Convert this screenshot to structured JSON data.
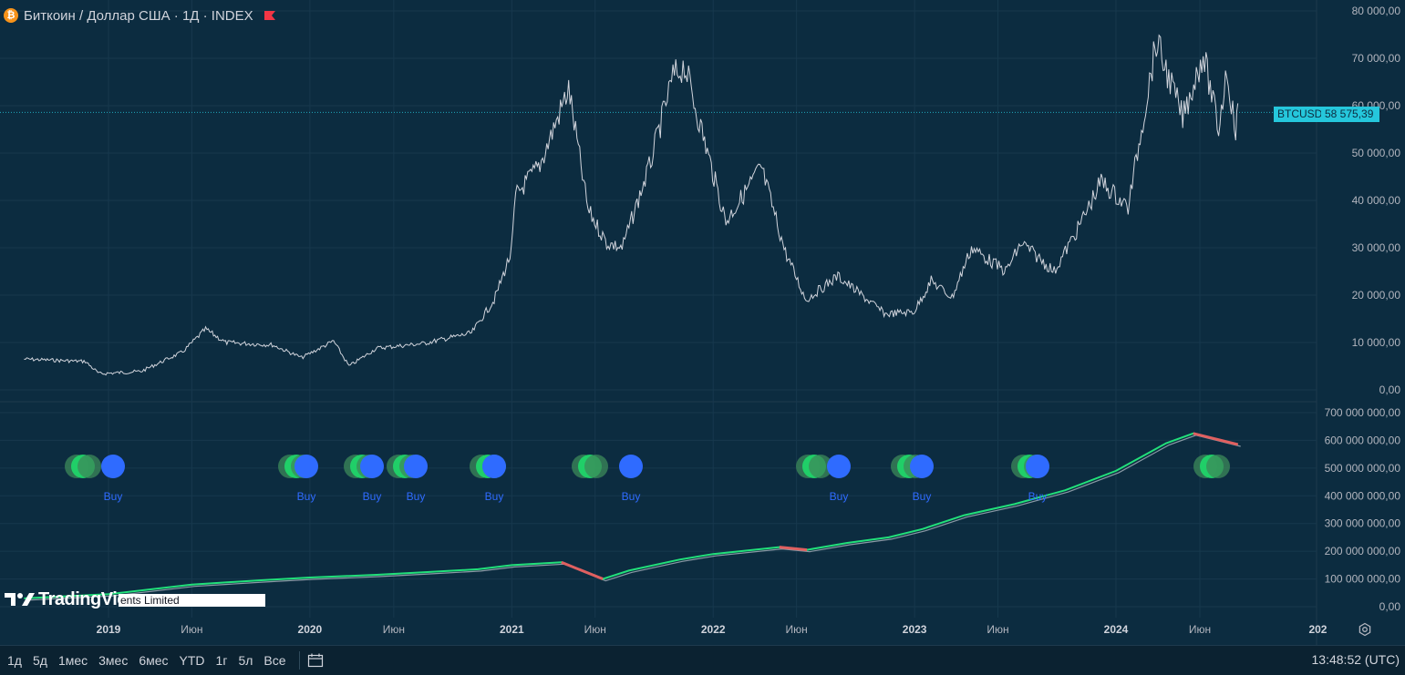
{
  "header": {
    "symbol_title": "Биткоин / Доллар США · 1Д · INDEX",
    "logo_glyph": "₿"
  },
  "colors": {
    "background": "#0c2c40",
    "price_line": "#d1d4dc",
    "grid": "#17384d",
    "indicator_green": "#22e07a",
    "indicator_red": "#e06060",
    "signal_blue": "#2f6bff",
    "accent_cyan": "#25c7dc"
  },
  "price_tag": {
    "symbol": "BTCUSD",
    "value": "58 575,39"
  },
  "time_axis_labels": [
    "2019",
    "Июн",
    "2020",
    "Июн",
    "2021",
    "Июн",
    "2022",
    "Июн",
    "2023",
    "Июн",
    "2024",
    "Июн",
    "202"
  ],
  "price_axis_labels": [
    "80 000,00",
    "70 000,00",
    "60 000,00",
    "50 000,00",
    "40 000,00",
    "30 000,00",
    "20 000,00",
    "10 000,00",
    "0,00"
  ],
  "indicator_axis_labels": [
    "700 000 000,00",
    "600 000 000,00",
    "500 000 000,00",
    "400 000 000,00",
    "300 000 000,00",
    "200 000 000,00",
    "100 000 000,00",
    "0,00"
  ],
  "signals": {
    "label": "Buy"
  },
  "bottom_bar": {
    "ranges": [
      "1д",
      "5д",
      "1мес",
      "3мес",
      "6мес",
      "YTD",
      "1г",
      "5л",
      "Все"
    ],
    "clock": "13:48:52 (UTC)"
  },
  "watermark": {
    "logo_text": "TradingView",
    "note_text": "ents Limited"
  },
  "chart_data": [
    {
      "type": "line",
      "name": "BTCUSD",
      "x": [
        "2018-08-01",
        "2018-11-20",
        "2018-12-15",
        "2019-03-01",
        "2019-05-15",
        "2019-06-26",
        "2019-08-01",
        "2019-10-25",
        "2019-12-17",
        "2020-02-13",
        "2020-03-12",
        "2020-05-01",
        "2020-07-25",
        "2020-10-20",
        "2020-11-30",
        "2020-12-31",
        "2021-01-08",
        "2021-02-21",
        "2021-04-14",
        "2021-05-19",
        "2021-06-22",
        "2021-07-20",
        "2021-09-07",
        "2021-10-20",
        "2021-11-10",
        "2021-12-31",
        "2022-01-24",
        "2022-03-29",
        "2022-05-12",
        "2022-06-18",
        "2022-08-15",
        "2022-11-09",
        "2022-12-31",
        "2023-01-31",
        "2023-03-10",
        "2023-04-14",
        "2023-06-15",
        "2023-07-14",
        "2023-09-11",
        "2023-10-24",
        "2023-12-05",
        "2024-01-23",
        "2024-03-14",
        "2024-05-01",
        "2024-06-07",
        "2024-07-05",
        "2024-07-20",
        "2024-08-05",
        "2024-08-09"
      ],
      "y": [
        6500,
        6000,
        3400,
        3900,
        8000,
        12800,
        10000,
        9500,
        6800,
        10300,
        5000,
        8800,
        9800,
        12000,
        19000,
        29000,
        41000,
        47500,
        63500,
        38000,
        31000,
        30000,
        47000,
        66000,
        68500,
        46000,
        35500,
        47000,
        29000,
        19000,
        24000,
        16000,
        16500,
        23000,
        19500,
        30000,
        25000,
        31000,
        25000,
        34000,
        44000,
        38500,
        73500,
        57500,
        71000,
        55000,
        68000,
        54000,
        60500
      ],
      "ylim": [
        0,
        80000
      ]
    },
    {
      "type": "line",
      "name": "indicator",
      "x": [
        "2018-08-01",
        "2019-01-01",
        "2019-06-01",
        "2019-10-01",
        "2020-01-01",
        "2020-05-01",
        "2020-08-01",
        "2020-11-01",
        "2021-01-01",
        "2021-04-01",
        "2021-06-15",
        "2021-08-01",
        "2021-11-01",
        "2022-01-01",
        "2022-05-01",
        "2022-06-20",
        "2022-09-01",
        "2022-11-15",
        "2023-01-15",
        "2023-04-01",
        "2023-07-01",
        "2023-10-01",
        "2024-01-01",
        "2024-04-01",
        "2024-05-20",
        "2024-08-09"
      ],
      "y": [
        30000000,
        45000000,
        80000000,
        95000000,
        105000000,
        115000000,
        125000000,
        135000000,
        150000000,
        160000000,
        100000000,
        130000000,
        170000000,
        190000000,
        215000000,
        205000000,
        230000000,
        250000000,
        280000000,
        330000000,
        370000000,
        420000000,
        490000000,
        590000000,
        625000000,
        585000000
      ],
      "ylim": [
        0,
        700000000
      ]
    }
  ]
}
